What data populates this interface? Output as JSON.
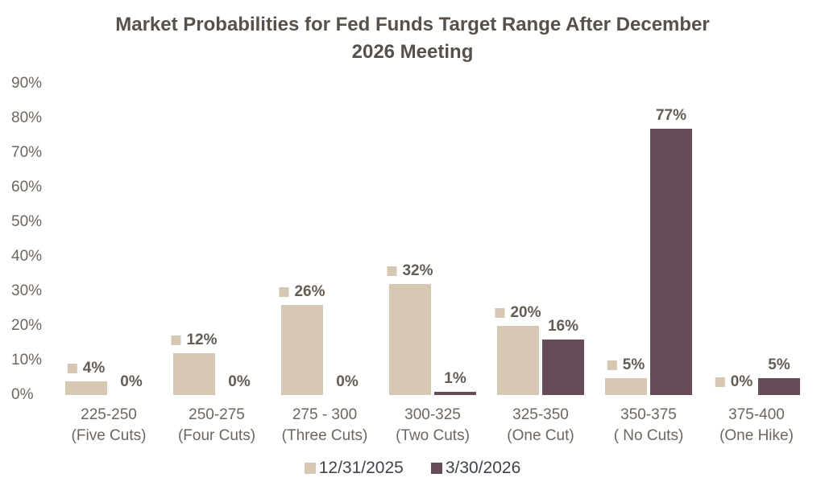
{
  "title": "Market Probabilities for Fed Funds Target Range After December 2026 Meeting",
  "colors": {
    "background": "#ffffff",
    "series1": "#d5c7b2",
    "series2": "#664b59",
    "title_text": "#57514a",
    "axis_text": "#6e665e",
    "data_label_text": "#655c53",
    "legend_text": "#3f444c"
  },
  "chart_data": {
    "type": "bar",
    "title": "Market Probabilities for Fed Funds Target Range After December 2026 Meeting",
    "categories": [
      {
        "line1": "225-250",
        "line2": "(Five Cuts)"
      },
      {
        "line1": "250-275",
        "line2": "(Four Cuts)"
      },
      {
        "line1": "275 - 300",
        "line2": "(Three Cuts)"
      },
      {
        "line1": "300-325",
        "line2": "(Two Cuts)"
      },
      {
        "line1": "325-350",
        "line2": "(One Cut)"
      },
      {
        "line1": "350-375",
        "line2": "( No Cuts)"
      },
      {
        "line1": "375-400",
        "line2": "(One Hike)"
      }
    ],
    "series": [
      {
        "name": "12/31/2025",
        "color": "#d5c7b2",
        "values": [
          4,
          12,
          26,
          32,
          20,
          5,
          0
        ],
        "data_labels": [
          "4%",
          "12%",
          "26%",
          "32%",
          "20%",
          "5%",
          "0%"
        ],
        "marker_in_label": true
      },
      {
        "name": "3/30/2026",
        "color": "#664b59",
        "values": [
          0,
          0,
          0,
          1,
          16,
          77,
          5
        ],
        "data_labels": [
          "0%",
          "0%",
          "0%",
          "1%",
          "16%",
          "77%",
          "5%"
        ],
        "marker_in_label": false
      }
    ],
    "xlabel": "",
    "ylabel": "",
    "ylim": [
      0,
      90
    ],
    "ytick_step": 10,
    "ytick_labels": [
      "0%",
      "10%",
      "20%",
      "30%",
      "40%",
      "50%",
      "60%",
      "70%",
      "80%",
      "90%"
    ],
    "grid": false,
    "legend_position": "bottom"
  }
}
